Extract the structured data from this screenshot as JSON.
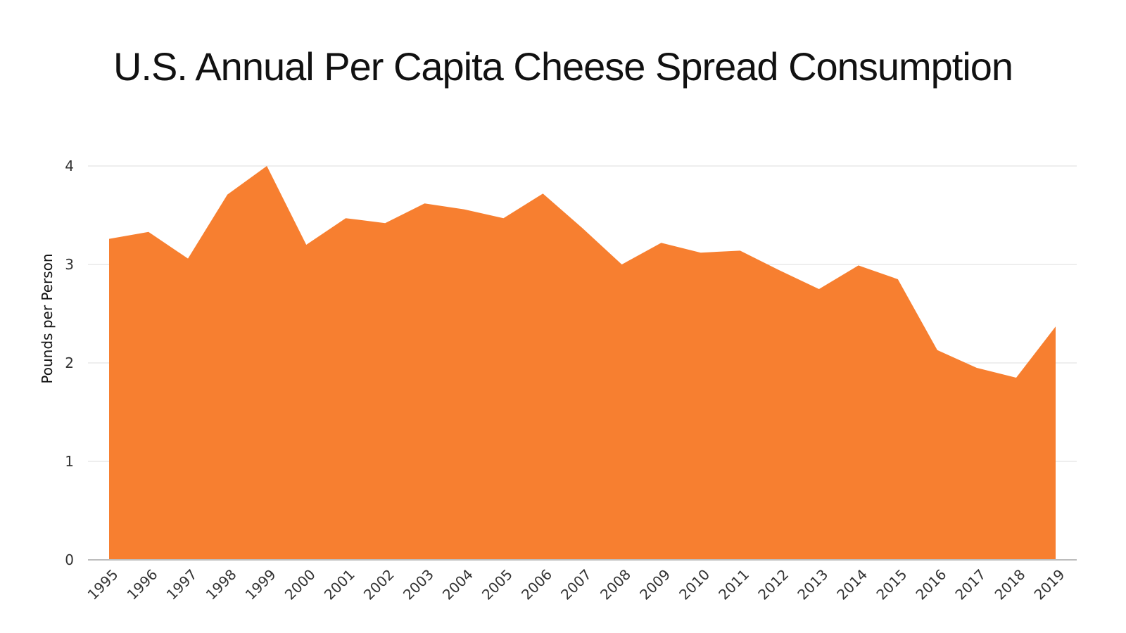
{
  "chart_data": {
    "type": "area",
    "title": "U.S. Annual Per Capita Cheese Spread Consumption",
    "xlabel": "",
    "ylabel": "Pounds per Person",
    "x": [
      "1995",
      "1996",
      "1997",
      "1998",
      "1999",
      "2000",
      "2001",
      "2002",
      "2003",
      "2004",
      "2005",
      "2006",
      "2007",
      "2008",
      "2009",
      "2010",
      "2011",
      "2012",
      "2013",
      "2014",
      "2015",
      "2016",
      "2017",
      "2018",
      "2019"
    ],
    "series": [
      {
        "values": [
          3.26,
          3.33,
          3.06,
          3.71,
          4.0,
          3.2,
          3.47,
          3.42,
          3.62,
          3.56,
          3.47,
          3.72,
          3.37,
          3.0,
          3.22,
          3.12,
          3.14,
          2.94,
          2.75,
          2.99,
          2.85,
          2.13,
          1.95,
          1.85,
          2.37
        ]
      }
    ],
    "ylim": [
      0,
      4
    ],
    "yticks": [
      0,
      1,
      2,
      3,
      4
    ],
    "grid": true,
    "legend": "none",
    "color": "#F77F30"
  }
}
